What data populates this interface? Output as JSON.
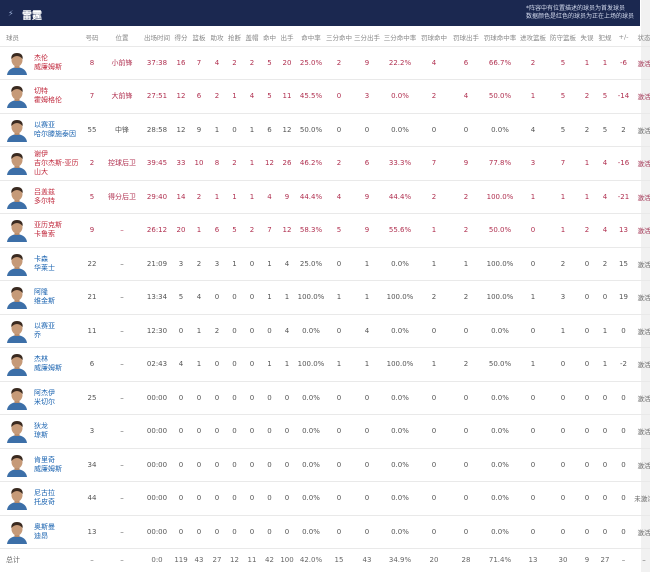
{
  "header": {
    "logo_icon": "thunder-logo-icon",
    "title": "雷霆",
    "note_line1": "*阵容中有位置描述的球员为首发球员",
    "note_line2": "数据颜色是红色的球员为正在上场的球员"
  },
  "colors": {
    "header_bg": "#1b2850",
    "on_court": "#c0283c",
    "bench_name": "#1a63b0"
  },
  "columns": [
    "球员",
    "号码",
    "位置",
    "出场时间",
    "得分",
    "篮板",
    "助攻",
    "抢断",
    "盖帽",
    "命中",
    "出手",
    "命中率",
    "三分命中",
    "三分出手",
    "三分命中率",
    "罚球命中",
    "罚球出手",
    "罚球命中率",
    "进攻篮板",
    "防守篮板",
    "失误",
    "犯规",
    "+/-",
    "状态"
  ],
  "players": [
    {
      "name1": "杰伦",
      "name2": "威廉姆斯",
      "on_court": true,
      "stats": [
        "8",
        "小前锋",
        "37:38",
        "16",
        "7",
        "4",
        "2",
        "2",
        "5",
        "20",
        "25.0%",
        "2",
        "9",
        "22.2%",
        "4",
        "6",
        "66.7%",
        "2",
        "5",
        "1",
        "1",
        "-6"
      ],
      "status": "激活"
    },
    {
      "name1": "切特",
      "name2": "霍姆格伦",
      "on_court": true,
      "stats": [
        "7",
        "大前锋",
        "27:51",
        "12",
        "6",
        "2",
        "1",
        "4",
        "5",
        "11",
        "45.5%",
        "0",
        "3",
        "0.0%",
        "2",
        "4",
        "50.0%",
        "1",
        "5",
        "2",
        "5",
        "-14"
      ],
      "status": "激活"
    },
    {
      "name1": "以赛亚",
      "name2": "哈尔滕施泰因",
      "on_court": false,
      "stats": [
        "55",
        "中锋",
        "28:58",
        "12",
        "9",
        "1",
        "0",
        "1",
        "6",
        "12",
        "50.0%",
        "0",
        "0",
        "0.0%",
        "0",
        "0",
        "0.0%",
        "4",
        "5",
        "2",
        "5",
        "2"
      ],
      "status": "激活"
    },
    {
      "name1": "谢伊",
      "name2": "吉尔杰斯-亚历山大",
      "on_court": true,
      "stats": [
        "2",
        "控球后卫",
        "39:45",
        "33",
        "10",
        "8",
        "2",
        "1",
        "12",
        "26",
        "46.2%",
        "2",
        "6",
        "33.3%",
        "7",
        "9",
        "77.8%",
        "3",
        "7",
        "1",
        "4",
        "-16"
      ],
      "status": "激活"
    },
    {
      "name1": "吕盖兹",
      "name2": "多尔特",
      "on_court": true,
      "stats": [
        "5",
        "得分后卫",
        "29:40",
        "14",
        "2",
        "1",
        "1",
        "1",
        "4",
        "9",
        "44.4%",
        "4",
        "9",
        "44.4%",
        "2",
        "2",
        "100.0%",
        "1",
        "1",
        "1",
        "4",
        "-21"
      ],
      "status": "激活"
    },
    {
      "name1": "亚历克斯",
      "name2": "卡鲁索",
      "on_court": true,
      "stats": [
        "9",
        "–",
        "26:12",
        "20",
        "1",
        "6",
        "5",
        "2",
        "7",
        "12",
        "58.3%",
        "5",
        "9",
        "55.6%",
        "1",
        "2",
        "50.0%",
        "0",
        "1",
        "2",
        "4",
        "13"
      ],
      "status": "激活"
    },
    {
      "name1": "卡森",
      "name2": "华莱士",
      "on_court": false,
      "stats": [
        "22",
        "–",
        "21:09",
        "3",
        "2",
        "3",
        "1",
        "0",
        "1",
        "4",
        "25.0%",
        "0",
        "1",
        "0.0%",
        "1",
        "1",
        "100.0%",
        "0",
        "2",
        "0",
        "2",
        "15"
      ],
      "status": "激活"
    },
    {
      "name1": "阿隆",
      "name2": "维金斯",
      "on_court": false,
      "stats": [
        "21",
        "–",
        "13:34",
        "5",
        "4",
        "0",
        "0",
        "0",
        "1",
        "1",
        "100.0%",
        "1",
        "1",
        "100.0%",
        "2",
        "2",
        "100.0%",
        "1",
        "3",
        "0",
        "0",
        "19"
      ],
      "status": "激活"
    },
    {
      "name1": "以赛亚",
      "name2": "乔",
      "on_court": false,
      "stats": [
        "11",
        "–",
        "12:30",
        "0",
        "1",
        "2",
        "0",
        "0",
        "0",
        "4",
        "0.0%",
        "0",
        "4",
        "0.0%",
        "0",
        "0",
        "0.0%",
        "0",
        "1",
        "0",
        "1",
        "0"
      ],
      "status": "激活"
    },
    {
      "name1": "杰林",
      "name2": "威廉姆斯",
      "on_court": false,
      "stats": [
        "6",
        "–",
        "02:43",
        "4",
        "1",
        "0",
        "0",
        "0",
        "1",
        "1",
        "100.0%",
        "1",
        "1",
        "100.0%",
        "1",
        "2",
        "50.0%",
        "1",
        "0",
        "0",
        "1",
        "-2"
      ],
      "status": "激活"
    },
    {
      "name1": "阿杰伊",
      "name2": "米切尔",
      "on_court": false,
      "stats": [
        "25",
        "–",
        "00:00",
        "0",
        "0",
        "0",
        "0",
        "0",
        "0",
        "0",
        "0.0%",
        "0",
        "0",
        "0.0%",
        "0",
        "0",
        "0.0%",
        "0",
        "0",
        "0",
        "0",
        "0"
      ],
      "status": "激活"
    },
    {
      "name1": "狄龙",
      "name2": "琼斯",
      "on_court": false,
      "stats": [
        "3",
        "–",
        "00:00",
        "0",
        "0",
        "0",
        "0",
        "0",
        "0",
        "0",
        "0.0%",
        "0",
        "0",
        "0.0%",
        "0",
        "0",
        "0.0%",
        "0",
        "0",
        "0",
        "0",
        "0"
      ],
      "status": "激活"
    },
    {
      "name1": "肯里奇",
      "name2": "威廉姆斯",
      "on_court": false,
      "stats": [
        "34",
        "–",
        "00:00",
        "0",
        "0",
        "0",
        "0",
        "0",
        "0",
        "0",
        "0.0%",
        "0",
        "0",
        "0.0%",
        "0",
        "0",
        "0.0%",
        "0",
        "0",
        "0",
        "0",
        "0"
      ],
      "status": "激活"
    },
    {
      "name1": "尼古拉",
      "name2": "托皮奇",
      "on_court": false,
      "stats": [
        "44",
        "–",
        "00:00",
        "0",
        "0",
        "0",
        "0",
        "0",
        "0",
        "0",
        "0.0%",
        "0",
        "0",
        "0.0%",
        "0",
        "0",
        "0.0%",
        "0",
        "0",
        "0",
        "0",
        "0"
      ],
      "status": "未激活"
    },
    {
      "name1": "奥斯曼",
      "name2": "迪昂",
      "on_court": false,
      "stats": [
        "13",
        "–",
        "00:00",
        "0",
        "0",
        "0",
        "0",
        "0",
        "0",
        "0",
        "0.0%",
        "0",
        "0",
        "0.0%",
        "0",
        "0",
        "0.0%",
        "0",
        "0",
        "0",
        "0",
        "0"
      ],
      "status": "激活"
    }
  ],
  "total": {
    "label": "总计",
    "stats": [
      "–",
      "–",
      "0:0",
      "119",
      "43",
      "27",
      "12",
      "11",
      "42",
      "100",
      "42.0%",
      "15",
      "43",
      "34.9%",
      "20",
      "28",
      "71.4%",
      "13",
      "30",
      "9",
      "27",
      "–",
      "–"
    ]
  }
}
